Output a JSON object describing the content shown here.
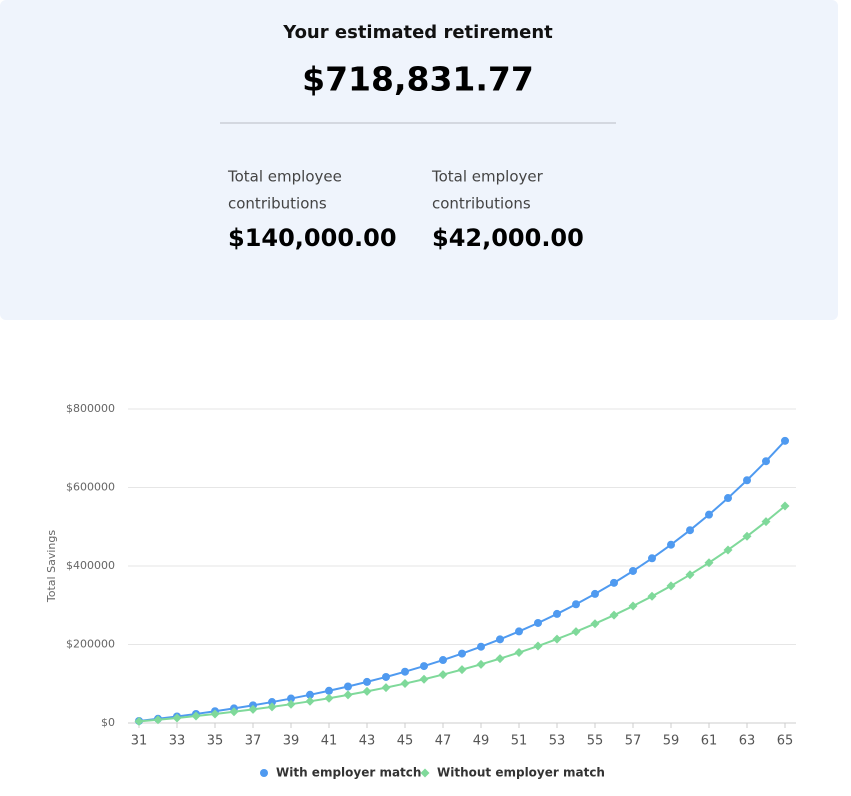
{
  "summary": {
    "title": "Your estimated retirement",
    "total": "$718,831.77",
    "items": [
      {
        "label_line1": "Total employee",
        "label_line2": "contributions",
        "value": "$140,000.00"
      },
      {
        "label_line1": "Total employer",
        "label_line2": "contributions",
        "value": "$42,000.00"
      }
    ]
  },
  "chart_data": {
    "type": "line",
    "ylabel": "Total Savings",
    "x": [
      31,
      32,
      33,
      34,
      35,
      36,
      37,
      38,
      39,
      40,
      41,
      42,
      43,
      44,
      45,
      46,
      47,
      48,
      49,
      50,
      51,
      52,
      53,
      54,
      55,
      56,
      57,
      58,
      59,
      60,
      61,
      62,
      63,
      64,
      65
    ],
    "xlim": [
      31,
      65
    ],
    "xticks": [
      31,
      33,
      35,
      37,
      39,
      41,
      43,
      45,
      47,
      49,
      51,
      53,
      55,
      57,
      59,
      61,
      63,
      65
    ],
    "ylim": [
      0,
      800000
    ],
    "yticks": [
      {
        "value": 0,
        "label": "$0"
      },
      {
        "value": 200000,
        "label": "$200000"
      },
      {
        "value": 400000,
        "label": "$400000"
      },
      {
        "value": 600000,
        "label": "$600000"
      },
      {
        "value": 800000,
        "label": "$800000"
      }
    ],
    "grid": true,
    "series": [
      {
        "name": "With employer match",
        "color": "#4f9af0",
        "marker": "circle",
        "values": [
          5200,
          10764,
          16717,
          23088,
          29904,
          37197,
          45001,
          53351,
          62286,
          71846,
          82075,
          93020,
          104731,
          117263,
          130671,
          145018,
          160369,
          176795,
          194371,
          213177,
          233299,
          254830,
          277868,
          302519,
          328895,
          357118,
          387316,
          419628,
          454202,
          491196,
          530780,
          573134,
          618454,
          666946,
          718832
        ]
      },
      {
        "name": "Without employer match",
        "color": "#7fd99a",
        "marker": "diamond",
        "values": [
          4000,
          8280,
          12860,
          17760,
          23003,
          28613,
          34616,
          41039,
          47912,
          55266,
          63134,
          71554,
          80563,
          90202,
          100516,
          111552,
          123361,
          135996,
          149516,
          163982,
          179461,
          196023,
          213745,
          232707,
          252996,
          274706,
          297935,
          322791,
          349386,
          377843,
          408292,
          440873,
          475734,
          513035,
          552948
        ]
      }
    ]
  }
}
